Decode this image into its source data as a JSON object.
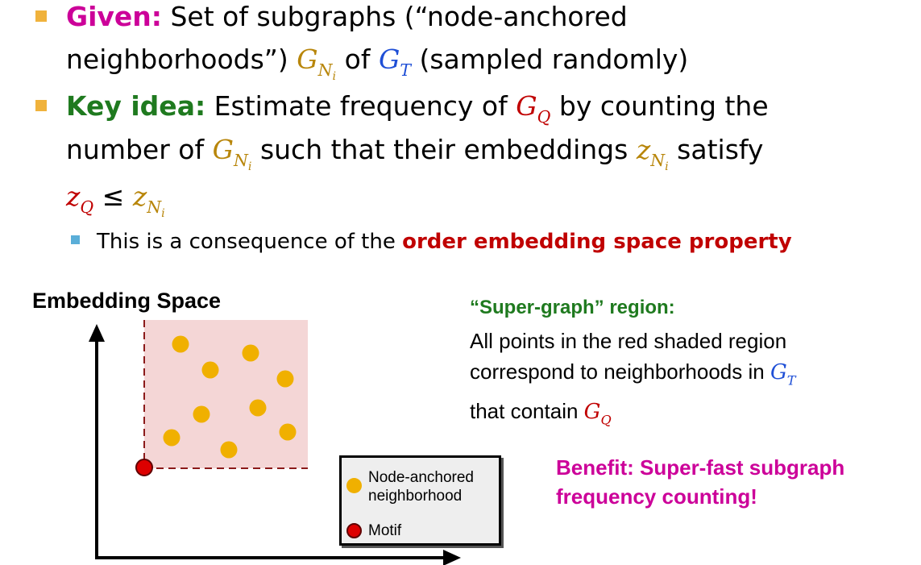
{
  "bullets": {
    "given": {
      "label": "Given:",
      "text1": "Set of subgraphs (“node-anchored",
      "text2a": "neighborhoods”)",
      "math_g": "G",
      "math_n": "N",
      "math_i": "i",
      "text2b": "of",
      "math_gt": "G",
      "math_t": "T",
      "text2c": "(sampled randomly)"
    },
    "key_idea": {
      "label": "Key idea:",
      "text1": "Estimate frequency of",
      "math_gq": "G",
      "math_q": "Q",
      "text1b": "by counting the",
      "text2a": "number of",
      "math_gn": "G",
      "math_n": "N",
      "math_i": "i",
      "text2b": "such that their embeddings",
      "math_z": "z",
      "text2c": "satisfy",
      "math_zq": "z",
      "math_leq": "≤",
      "math_zn": "z"
    },
    "sub": {
      "text": "This is a consequence of the",
      "emphasis": "order embedding space property"
    }
  },
  "diagram": {
    "title": "Embedding Space",
    "legend": {
      "neighborhood_line1": "Node-anchored",
      "neighborhood_line2": "neighborhood",
      "motif": "Motif"
    }
  },
  "region": {
    "title": "“Super-graph” region:",
    "line1": "All points in the red shaded region",
    "line2": "correspond to neighborhoods in",
    "math_g": "G",
    "math_t": "T",
    "line3": "that contain",
    "math_gq": "G",
    "math_q": "Q"
  },
  "benefit": {
    "line1": "Benefit: Super-fast subgraph",
    "line2": "frequency counting!"
  },
  "colors": {
    "bullet": "#f0b23c",
    "sub_bullet": "#5aaed8",
    "given": "#cc0099",
    "key_idea": "#1f7a1f",
    "emphasis": "#c00000",
    "points": "#f0b000",
    "motif": "#dd0000",
    "shaded_region": "#f4d6d6"
  },
  "icons": [
    "neighborhood-point-icon",
    "motif-point-icon",
    "y-axis-arrow",
    "x-axis-arrow"
  ]
}
